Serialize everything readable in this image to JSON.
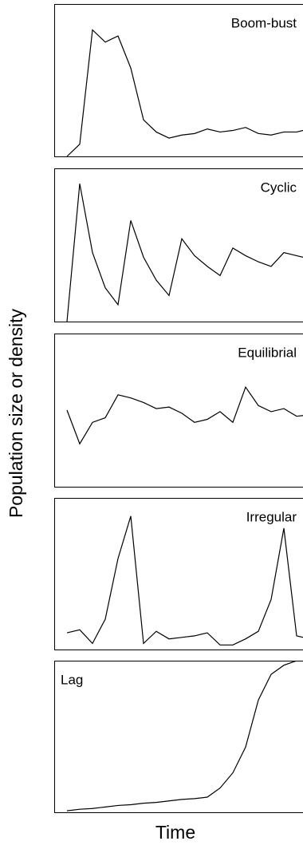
{
  "chart_data": [
    {
      "type": "line",
      "title": "Boom-bust",
      "title_position": "top-right",
      "xlim": [
        0,
        19
      ],
      "ylim": [
        0,
        100
      ],
      "x": [
        0,
        1,
        2,
        3,
        4,
        5,
        6,
        7,
        8,
        9,
        10,
        11,
        12,
        13,
        14,
        15,
        16,
        17,
        18,
        19
      ],
      "values": [
        0,
        8,
        83,
        75,
        79,
        58,
        24,
        16,
        12,
        14,
        15,
        18,
        16,
        17,
        19,
        15,
        14,
        16,
        16,
        18
      ]
    },
    {
      "type": "line",
      "title": "Cyclic",
      "title_position": "top-right",
      "xlim": [
        0,
        19
      ],
      "ylim": [
        0,
        100
      ],
      "x": [
        0,
        1,
        2,
        3,
        4,
        5,
        6,
        7,
        8,
        9,
        10,
        11,
        12,
        13,
        14,
        15,
        16,
        17,
        18,
        19
      ],
      "values": [
        0,
        90,
        45,
        22,
        11,
        66,
        42,
        27,
        17,
        54,
        43,
        36,
        30,
        48,
        43,
        39,
        36,
        45,
        43,
        41
      ]
    },
    {
      "type": "line",
      "title": "Equilibrial",
      "title_position": "top-right",
      "xlim": [
        0,
        19
      ],
      "ylim": [
        0,
        100
      ],
      "x": [
        0,
        1,
        2,
        3,
        4,
        5,
        6,
        7,
        8,
        9,
        10,
        11,
        12,
        13,
        14,
        15,
        16,
        17,
        18,
        19
      ],
      "values": [
        50,
        28,
        42,
        45,
        60,
        58,
        55,
        51,
        52,
        48,
        42,
        44,
        49,
        42,
        65,
        53,
        49,
        51,
        46,
        47
      ]
    },
    {
      "type": "line",
      "title": "Irregular",
      "title_position": "top-right",
      "xlim": [
        0,
        19
      ],
      "ylim": [
        0,
        100
      ],
      "x": [
        0,
        1,
        2,
        3,
        4,
        5,
        6,
        7,
        8,
        9,
        10,
        11,
        12,
        13,
        14,
        15,
        16,
        17,
        18,
        19
      ],
      "values": [
        11,
        13,
        4,
        20,
        60,
        88,
        4,
        12,
        7,
        8,
        9,
        11,
        3,
        3,
        7,
        12,
        33,
        80,
        9,
        7
      ]
    },
    {
      "type": "line",
      "title": "Lag",
      "title_position": "top-left",
      "xlim": [
        0,
        19
      ],
      "ylim": [
        0,
        100
      ],
      "x": [
        0,
        1,
        2,
        3,
        4,
        5,
        6,
        7,
        8,
        9,
        10,
        11,
        12,
        13,
        14,
        15,
        16,
        17,
        18,
        19
      ],
      "values": [
        1,
        2,
        2.5,
        3.5,
        4.5,
        5,
        6,
        6.5,
        7.5,
        8.5,
        9,
        10,
        16,
        26,
        43,
        74,
        91,
        97,
        100,
        100
      ]
    }
  ],
  "ylabel": "Population size or density",
  "xlabel": "Time"
}
